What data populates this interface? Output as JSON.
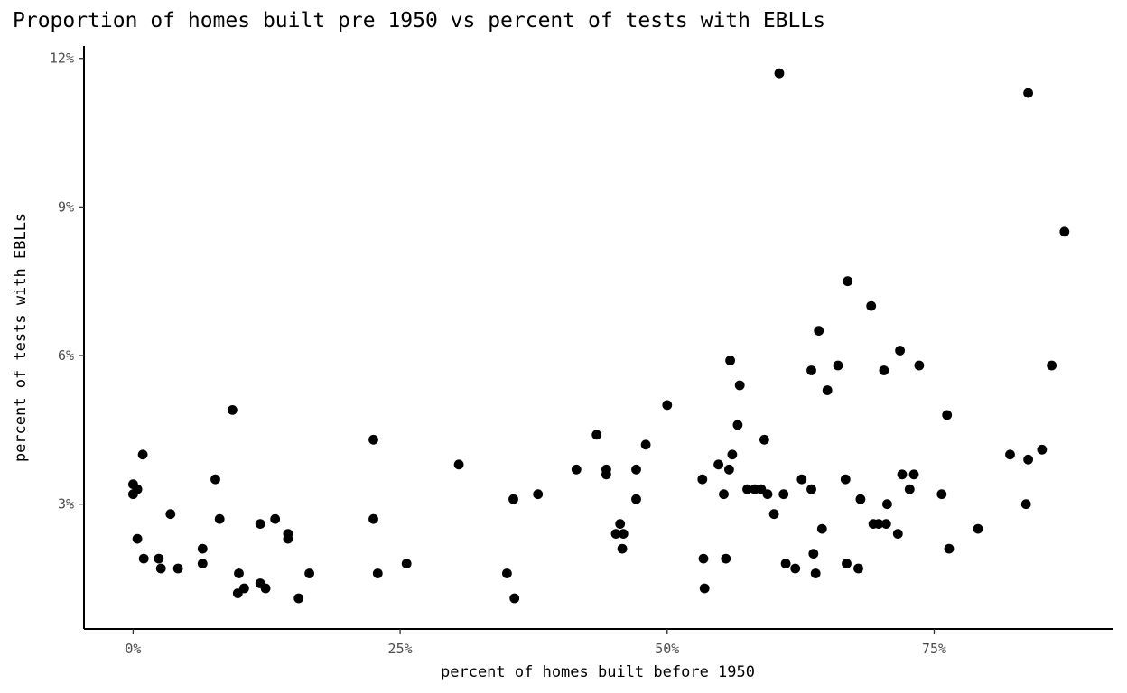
{
  "chart_data": {
    "type": "scatter",
    "title": "Proportion of homes built pre 1950 vs percent of tests with EBLLs",
    "xlabel": "percent of homes built before 1950",
    "ylabel": "percent of tests with EBLLs",
    "xlim": [
      -0.046,
      0.917
    ],
    "ylim": [
      0.0048,
      0.1225
    ],
    "x_ticks": [
      {
        "value": 0,
        "label": "0%"
      },
      {
        "value": 0.25,
        "label": "25%"
      },
      {
        "value": 0.5,
        "label": "50%"
      },
      {
        "value": 0.75,
        "label": "75%"
      }
    ],
    "y_ticks": [
      {
        "value": 0.03,
        "label": "3%"
      },
      {
        "value": 0.06,
        "label": "6%"
      },
      {
        "value": 0.09,
        "label": "9%"
      },
      {
        "value": 0.12,
        "label": "12%"
      }
    ],
    "grid": false,
    "point_color": "#000000",
    "points": [
      [
        0.0,
        0.034
      ],
      [
        0.0,
        0.032
      ],
      [
        0.004,
        0.033
      ],
      [
        0.009,
        0.04
      ],
      [
        0.004,
        0.023
      ],
      [
        0.01,
        0.019
      ],
      [
        0.024,
        0.019
      ],
      [
        0.026,
        0.017
      ],
      [
        0.035,
        0.028
      ],
      [
        0.042,
        0.017
      ],
      [
        0.065,
        0.021
      ],
      [
        0.065,
        0.018
      ],
      [
        0.077,
        0.035
      ],
      [
        0.081,
        0.027
      ],
      [
        0.093,
        0.049
      ],
      [
        0.099,
        0.016
      ],
      [
        0.098,
        0.012
      ],
      [
        0.104,
        0.013
      ],
      [
        0.119,
        0.026
      ],
      [
        0.119,
        0.014
      ],
      [
        0.124,
        0.013
      ],
      [
        0.133,
        0.027
      ],
      [
        0.145,
        0.024
      ],
      [
        0.145,
        0.023
      ],
      [
        0.155,
        0.011
      ],
      [
        0.165,
        0.016
      ],
      [
        0.225,
        0.043
      ],
      [
        0.225,
        0.027
      ],
      [
        0.229,
        0.016
      ],
      [
        0.256,
        0.018
      ],
      [
        0.305,
        0.038
      ],
      [
        0.35,
        0.016
      ],
      [
        0.356,
        0.031
      ],
      [
        0.357,
        0.011
      ],
      [
        0.379,
        0.032
      ],
      [
        0.415,
        0.037
      ],
      [
        0.434,
        0.044
      ],
      [
        0.443,
        0.037
      ],
      [
        0.443,
        0.036
      ],
      [
        0.452,
        0.024
      ],
      [
        0.456,
        0.026
      ],
      [
        0.459,
        0.024
      ],
      [
        0.458,
        0.021
      ],
      [
        0.471,
        0.037
      ],
      [
        0.471,
        0.031
      ],
      [
        0.48,
        0.042
      ],
      [
        0.5,
        0.05
      ],
      [
        0.533,
        0.035
      ],
      [
        0.534,
        0.019
      ],
      [
        0.535,
        0.013
      ],
      [
        0.548,
        0.038
      ],
      [
        0.553,
        0.032
      ],
      [
        0.555,
        0.019
      ],
      [
        0.559,
        0.059
      ],
      [
        0.558,
        0.037
      ],
      [
        0.561,
        0.04
      ],
      [
        0.566,
        0.046
      ],
      [
        0.568,
        0.054
      ],
      [
        0.575,
        0.033
      ],
      [
        0.582,
        0.033
      ],
      [
        0.588,
        0.033
      ],
      [
        0.591,
        0.043
      ],
      [
        0.594,
        0.032
      ],
      [
        0.6,
        0.028
      ],
      [
        0.605,
        0.117
      ],
      [
        0.609,
        0.032
      ],
      [
        0.611,
        0.018
      ],
      [
        0.62,
        0.017
      ],
      [
        0.626,
        0.035
      ],
      [
        0.635,
        0.057
      ],
      [
        0.635,
        0.033
      ],
      [
        0.637,
        0.02
      ],
      [
        0.639,
        0.016
      ],
      [
        0.642,
        0.065
      ],
      [
        0.645,
        0.025
      ],
      [
        0.65,
        0.053
      ],
      [
        0.66,
        0.058
      ],
      [
        0.667,
        0.035
      ],
      [
        0.669,
        0.075
      ],
      [
        0.668,
        0.018
      ],
      [
        0.679,
        0.017
      ],
      [
        0.681,
        0.031
      ],
      [
        0.691,
        0.07
      ],
      [
        0.693,
        0.026
      ],
      [
        0.698,
        0.026
      ],
      [
        0.703,
        0.057
      ],
      [
        0.705,
        0.026
      ],
      [
        0.706,
        0.03
      ],
      [
        0.716,
        0.024
      ],
      [
        0.718,
        0.061
      ],
      [
        0.72,
        0.036
      ],
      [
        0.727,
        0.033
      ],
      [
        0.731,
        0.036
      ],
      [
        0.736,
        0.058
      ],
      [
        0.757,
        0.032
      ],
      [
        0.762,
        0.048
      ],
      [
        0.764,
        0.021
      ],
      [
        0.791,
        0.025
      ],
      [
        0.821,
        0.04
      ],
      [
        0.836,
        0.03
      ],
      [
        0.838,
        0.113
      ],
      [
        0.838,
        0.039
      ],
      [
        0.851,
        0.041
      ],
      [
        0.86,
        0.058
      ],
      [
        0.872,
        0.085
      ]
    ]
  }
}
